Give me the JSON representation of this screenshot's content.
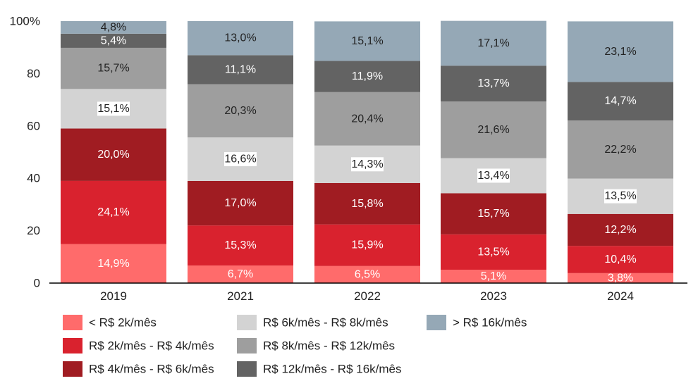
{
  "chart_data": {
    "type": "bar",
    "stacked": true,
    "categories": [
      "2019",
      "2021",
      "2022",
      "2023",
      "2024"
    ],
    "ylim": [
      0,
      100
    ],
    "yticks": [
      "0",
      "20",
      "40",
      "60",
      "80",
      "100%"
    ],
    "ytick_values": [
      0,
      20,
      40,
      60,
      80,
      100
    ],
    "grid": false,
    "legend_position": "bottom",
    "series": [
      {
        "name": "< R$ 2k/mês",
        "color": "#FF6B6B",
        "values": [
          14.9,
          6.7,
          6.5,
          5.1,
          3.8
        ],
        "labels": [
          "14,9%",
          "6,7%",
          "6,5%",
          "5,1%",
          "3,8%"
        ]
      },
      {
        "name": "R$ 2k/mês - R$ 4k/mês",
        "color": "#D9222E",
        "values": [
          24.1,
          15.3,
          15.9,
          13.5,
          10.4
        ],
        "labels": [
          "24,1%",
          "15,3%",
          "15,9%",
          "13,5%",
          "10,4%"
        ]
      },
      {
        "name": "R$ 4k/mês - R$ 6k/mês",
        "color": "#A01C22",
        "values": [
          20.0,
          17.0,
          15.8,
          15.7,
          12.2
        ],
        "labels": [
          "20,0%",
          "17,0%",
          "15,8%",
          "15,7%",
          "12,2%"
        ]
      },
      {
        "name": "R$ 6k/mês - R$ 8k/mês",
        "color": "#D3D3D3",
        "values": [
          15.1,
          16.6,
          14.3,
          13.4,
          13.5
        ],
        "labels": [
          "15,1%",
          "16,6%",
          "14,3%",
          "13,4%",
          "13,5%"
        ]
      },
      {
        "name": "R$ 8k/mês - R$ 12k/mês",
        "color": "#9E9E9E",
        "values": [
          15.7,
          20.3,
          20.4,
          21.6,
          22.2
        ],
        "labels": [
          "15,7%",
          "20,3%",
          "20,4%",
          "21,6%",
          "22,2%"
        ]
      },
      {
        "name": "R$ 12k/mês - R$ 16k/mês",
        "color": "#636363",
        "values": [
          5.4,
          11.1,
          11.9,
          13.7,
          14.7
        ],
        "labels": [
          "5,4%",
          "11,1%",
          "11,9%",
          "13,7%",
          "14,7%"
        ]
      },
      {
        "name": "> R$ 16k/mês",
        "color": "#95A8B6",
        "values": [
          4.8,
          13.0,
          15.1,
          17.1,
          23.1
        ],
        "labels": [
          "4,8%",
          "13,0%",
          "15,1%",
          "17,1%",
          "23,1%"
        ]
      }
    ],
    "label_colors": [
      "#ffffff",
      "#ffffff",
      "#ffffff",
      "#222222",
      "#222222",
      "#ffffff",
      "#222222"
    ],
    "label_backgrounds": [
      null,
      null,
      null,
      "#ffffff",
      null,
      null,
      null
    ]
  }
}
